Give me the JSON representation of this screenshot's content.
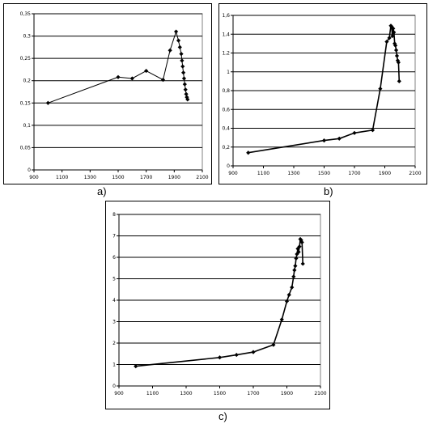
{
  "panel_labels": [
    "a)",
    "b)",
    "c)"
  ],
  "chart_data": [
    {
      "type": "line",
      "xlim": [
        900,
        2100
      ],
      "xticks": [
        900,
        1100,
        1300,
        1500,
        1700,
        1900,
        2100
      ],
      "xtick_labels": [
        "900",
        "1100",
        "1300",
        "1500",
        "1700",
        "1900",
        "2100"
      ],
      "ylim": [
        0,
        0.35
      ],
      "yticks": [
        0,
        0.05,
        0.1,
        0.15,
        0.2,
        0.25,
        0.3,
        0.35
      ],
      "ytick_labels": [
        "0",
        "0,05",
        "0,1",
        "0,15",
        "0,2",
        "0,25",
        "0,3",
        "0,35"
      ],
      "grid": true,
      "series": [
        {
          "x": [
            1000,
            1500,
            1600,
            1700,
            1820,
            1870,
            1913,
            1930,
            1940,
            1950,
            1955,
            1960,
            1965,
            1970,
            1975,
            1980,
            1985,
            1990,
            1995
          ],
          "y": [
            0.15,
            0.208,
            0.205,
            0.222,
            0.202,
            0.268,
            0.31,
            0.29,
            0.275,
            0.26,
            0.245,
            0.232,
            0.218,
            0.205,
            0.192,
            0.18,
            0.17,
            0.163,
            0.158
          ]
        }
      ]
    },
    {
      "type": "line",
      "xlim": [
        900,
        2100
      ],
      "xticks": [
        900,
        1100,
        1300,
        1500,
        1700,
        1900,
        2100
      ],
      "xtick_labels": [
        "900",
        "1100",
        "1300",
        "1500",
        "1700",
        "1900",
        "2100"
      ],
      "ylim": [
        0,
        1.6
      ],
      "yticks": [
        0,
        0.2,
        0.4,
        0.6,
        0.8,
        1,
        1.2,
        1.4,
        1.6
      ],
      "ytick_labels": [
        "0",
        "0,2",
        "0,4",
        "0,6",
        "0,8",
        "1",
        "1,2",
        "1,4",
        "1,6"
      ],
      "grid": true,
      "series": [
        {
          "x": [
            1000,
            1500,
            1600,
            1700,
            1820,
            1870,
            1913,
            1930,
            1940,
            1945,
            1950,
            1955,
            1960,
            1965,
            1970,
            1975,
            1980,
            1985,
            1990,
            1995
          ],
          "y": [
            0.14,
            0.27,
            0.29,
            0.35,
            0.38,
            0.82,
            1.32,
            1.36,
            1.49,
            1.48,
            1.38,
            1.46,
            1.42,
            1.3,
            1.28,
            1.23,
            1.17,
            1.12,
            1.1,
            0.9
          ]
        }
      ]
    },
    {
      "type": "line",
      "xlim": [
        900,
        2100
      ],
      "xticks": [
        900,
        1100,
        1300,
        1500,
        1700,
        1900,
        2100
      ],
      "xtick_labels": [
        "900",
        "1100",
        "1300",
        "1500",
        "1700",
        "1900",
        "2100"
      ],
      "ylim": [
        0,
        8
      ],
      "yticks": [
        0,
        1,
        2,
        3,
        4,
        5,
        6,
        7,
        8
      ],
      "ytick_labels": [
        "0",
        "1",
        "2",
        "3",
        "4",
        "5",
        "6",
        "7",
        "8"
      ],
      "grid": true,
      "series": [
        {
          "x": [
            1000,
            1500,
            1600,
            1700,
            1820,
            1870,
            1900,
            1913,
            1930,
            1940,
            1945,
            1950,
            1955,
            1960,
            1965,
            1970,
            1975,
            1980,
            1985,
            1990,
            1995
          ],
          "y": [
            0.92,
            1.33,
            1.45,
            1.58,
            1.92,
            3.1,
            3.95,
            4.25,
            4.6,
            5.1,
            5.4,
            5.6,
            5.95,
            6.15,
            6.4,
            6.25,
            6.5,
            6.85,
            6.8,
            6.7,
            5.7
          ]
        }
      ]
    }
  ]
}
